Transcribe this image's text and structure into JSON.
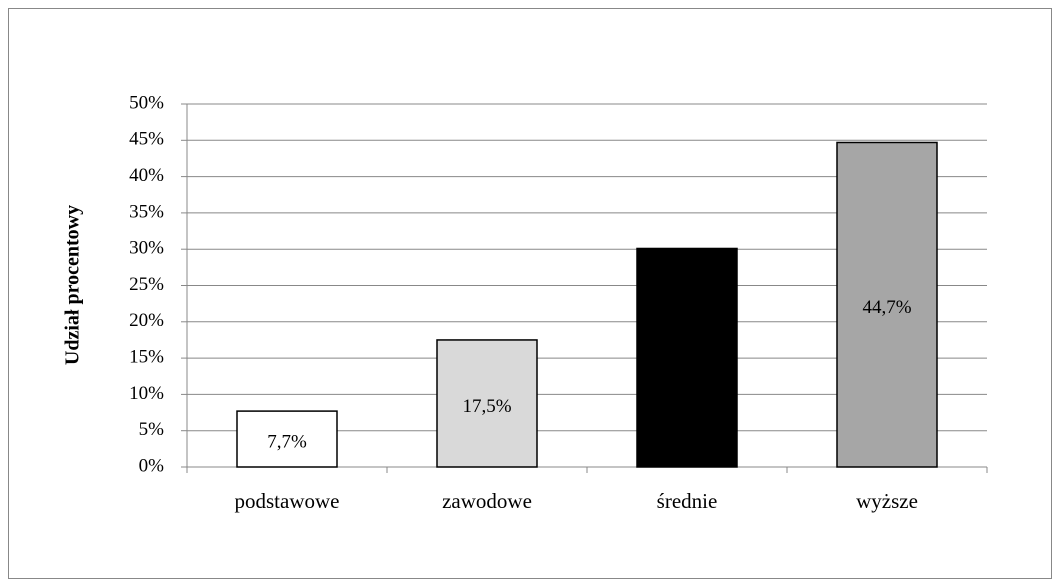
{
  "chart_data": {
    "type": "bar",
    "y_axis_label": "Udział procentowy",
    "categories": [
      "podstawowe",
      "zawodowe",
      "średnie",
      "wyższe"
    ],
    "values": [
      7.7,
      17.5,
      30.1,
      44.7
    ],
    "value_labels": [
      "7,7%",
      "17,5%",
      null,
      "44,7%"
    ],
    "colors": [
      "#ffffff",
      "#d9d9d9",
      "#000000",
      "#a6a6a6"
    ],
    "ylim": [
      0,
      50
    ],
    "yticks": [
      {
        "value": 0,
        "label": "0%"
      },
      {
        "value": 5,
        "label": "5%"
      },
      {
        "value": 10,
        "label": "10%"
      },
      {
        "value": 15,
        "label": "15%"
      },
      {
        "value": 20,
        "label": "20%"
      },
      {
        "value": 25,
        "label": "25%"
      },
      {
        "value": 30,
        "label": "30%"
      },
      {
        "value": 35,
        "label": "35%"
      },
      {
        "value": 40,
        "label": "40%"
      },
      {
        "value": 45,
        "label": "45%"
      },
      {
        "value": 50,
        "label": "50%"
      }
    ],
    "grid": true
  }
}
